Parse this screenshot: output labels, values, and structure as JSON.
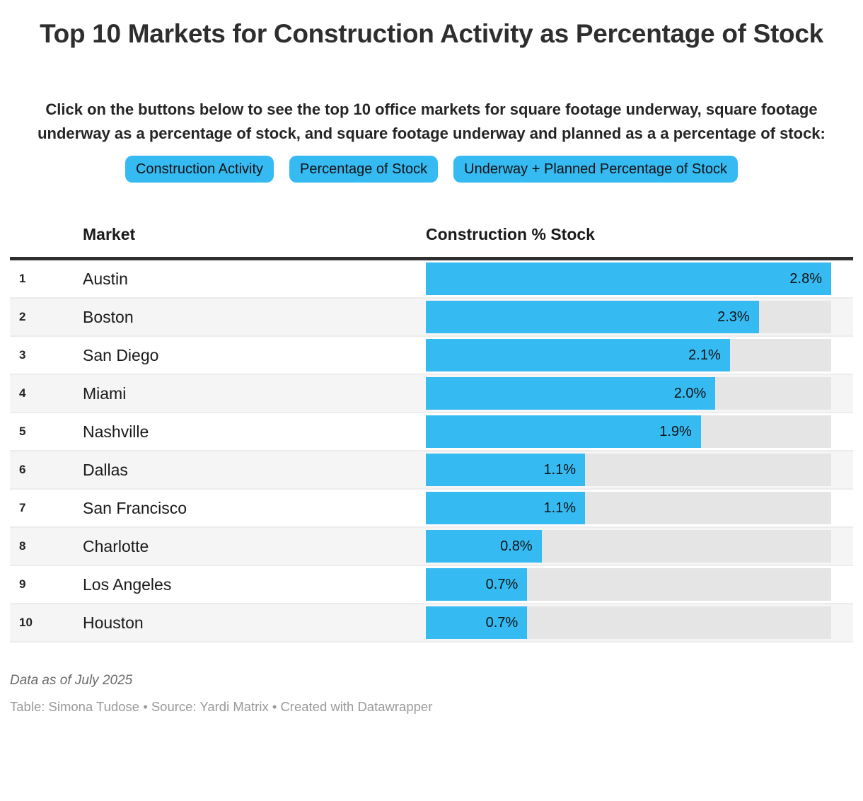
{
  "title": "Top 10 Markets for Construction Activity as Percentage of Stock",
  "description": "Click on the buttons below to see the top 10 office markets for square footage underway, square footage underway as a percentage of stock, and square footage underway and planned as a a percentage of stock:",
  "buttons": [
    {
      "label": "Construction Activity"
    },
    {
      "label": "Percentage of Stock"
    },
    {
      "label": "Underway + Planned Percentage of Stock"
    }
  ],
  "table": {
    "columns": [
      "Market",
      "Construction % Stock"
    ],
    "max_value": 2.8,
    "rows": [
      {
        "rank": "1",
        "market": "Austin",
        "value": 2.8,
        "label": "2.8%"
      },
      {
        "rank": "2",
        "market": "Boston",
        "value": 2.3,
        "label": "2.3%"
      },
      {
        "rank": "3",
        "market": "San Diego",
        "value": 2.1,
        "label": "2.1%"
      },
      {
        "rank": "4",
        "market": "Miami",
        "value": 2.0,
        "label": "2.0%"
      },
      {
        "rank": "5",
        "market": "Nashville",
        "value": 1.9,
        "label": "1.9%"
      },
      {
        "rank": "6",
        "market": "Dallas",
        "value": 1.1,
        "label": "1.1%"
      },
      {
        "rank": "7",
        "market": "San Francisco",
        "value": 1.1,
        "label": "1.1%"
      },
      {
        "rank": "8",
        "market": "Charlotte",
        "value": 0.8,
        "label": "0.8%"
      },
      {
        "rank": "9",
        "market": "Los Angeles",
        "value": 0.7,
        "label": "0.7%"
      },
      {
        "rank": "10",
        "market": "Houston",
        "value": 0.7,
        "label": "0.7%"
      }
    ]
  },
  "footer": {
    "note": "Data as of July 2025",
    "byline": "Table: Simona Tudose • Source: Yardi Matrix • Created with Datawrapper"
  },
  "colors": {
    "accent": "#35baf2",
    "track": "#e5e5e5",
    "row_alt": "#f5f5f5",
    "header_border": "#2f2f2f"
  },
  "chart_data": {
    "type": "bar",
    "orientation": "horizontal",
    "title": "Top 10 Markets for Construction Activity as Percentage of Stock",
    "xlabel": "Construction % Stock",
    "ylabel": "Market",
    "xlim": [
      0,
      2.8
    ],
    "categories": [
      "Austin",
      "Boston",
      "San Diego",
      "Miami",
      "Nashville",
      "Dallas",
      "San Francisco",
      "Charlotte",
      "Los Angeles",
      "Houston"
    ],
    "values": [
      2.8,
      2.3,
      2.1,
      2.0,
      1.9,
      1.1,
      1.1,
      0.8,
      0.7,
      0.7
    ],
    "value_labels": [
      "2.8%",
      "2.3%",
      "2.1%",
      "2.0%",
      "1.9%",
      "1.1%",
      "1.1%",
      "0.8%",
      "0.7%",
      "0.7%"
    ],
    "grid": false,
    "legend": false,
    "note": "Data as of July 2025",
    "source": "Yardi Matrix"
  }
}
